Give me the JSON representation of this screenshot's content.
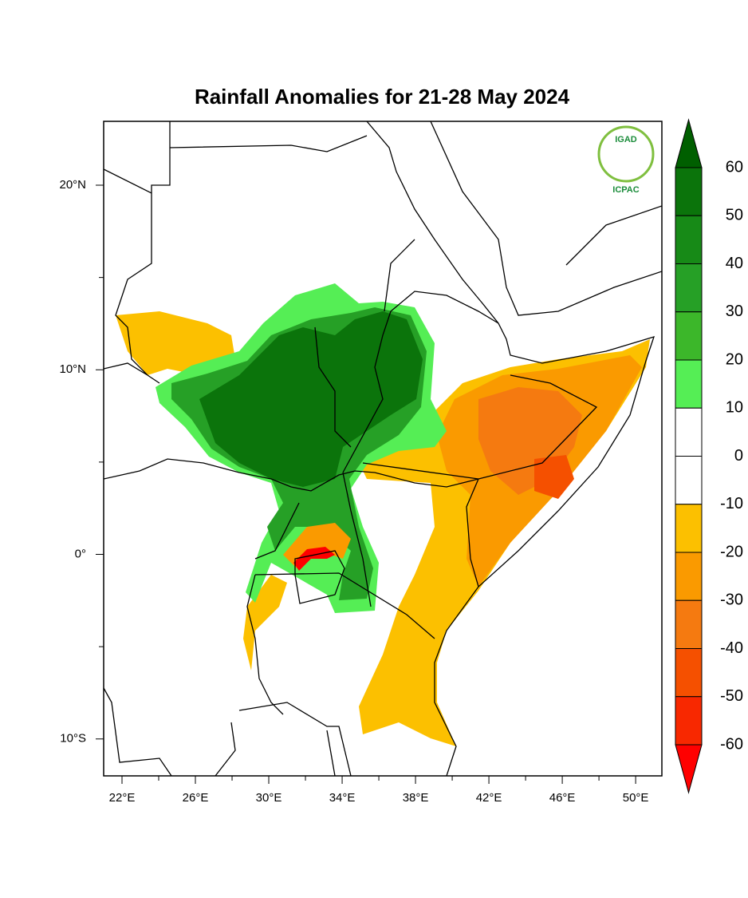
{
  "map": {
    "title": "Rainfall Anomalies for 21-28 May 2024",
    "lonlim": [
      21,
      51.43
    ],
    "latlim": [
      -12,
      23.46
    ],
    "lon_ticks": [
      {
        "value": 22,
        "label": "22°E"
      },
      {
        "value": 26,
        "label": "26°E"
      },
      {
        "value": 30,
        "label": "30°E"
      },
      {
        "value": 34,
        "label": "34°E"
      },
      {
        "value": 38,
        "label": "38°E"
      },
      {
        "value": 42,
        "label": "42°E"
      },
      {
        "value": 46,
        "label": "46°E"
      },
      {
        "value": 50,
        "label": "50°E"
      }
    ],
    "lon_minor_ticks": [
      24,
      28,
      32,
      36,
      40,
      44,
      48
    ],
    "lat_ticks": [
      {
        "value": 20,
        "label": "20°N"
      },
      {
        "value": 10,
        "label": "10°N"
      },
      {
        "value": 0,
        "label": "0°"
      },
      {
        "value": -10,
        "label": "10°S"
      }
    ],
    "lat_minor_ticks": [
      15,
      5,
      -5
    ],
    "logo": {
      "org": "IGAD",
      "name": "ICPAC"
    },
    "colorbar": {
      "levels": [
        60,
        50,
        40,
        30,
        20,
        10,
        0,
        -10,
        -20,
        -30,
        -40,
        -50,
        -60
      ],
      "colors": [
        "#005f00",
        "#0b740b",
        "#178a17",
        "#26a026",
        "#3cb72a",
        "#55ee55",
        "#ffffff",
        "#ffffff",
        "#fcc000",
        "#fa9a00",
        "#f57a10",
        "#f55000",
        "#f82800",
        "#ff0000"
      ]
    }
  }
}
